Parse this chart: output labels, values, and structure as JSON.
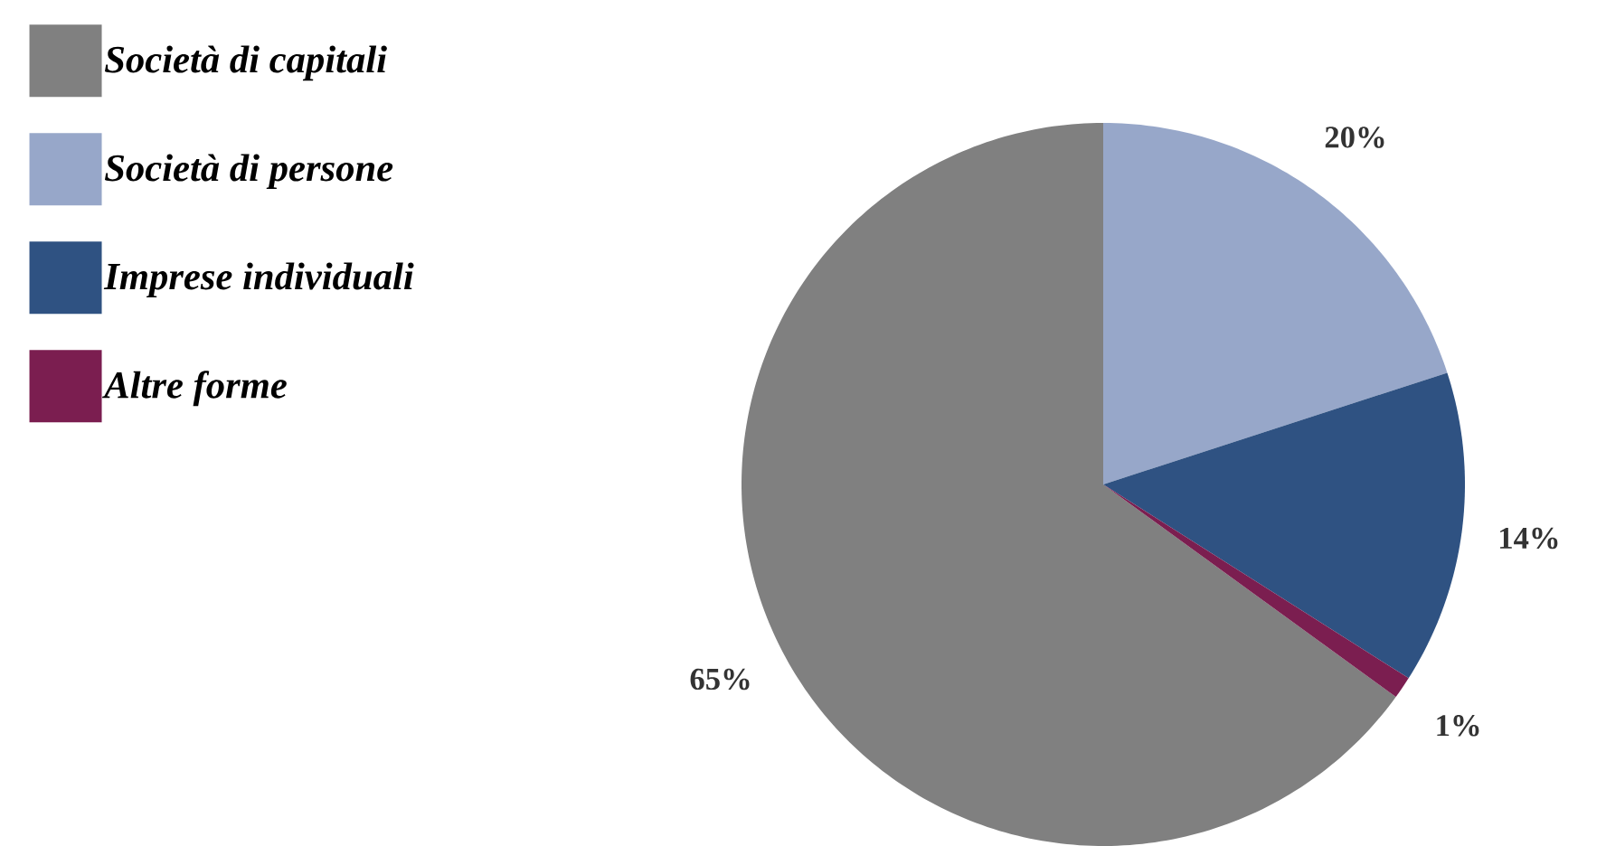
{
  "chart_data": {
    "type": "pie",
    "categories": [
      "Società di capitali",
      "Società di persone",
      "Imprese individuali",
      "Altre forme"
    ],
    "values": [
      65,
      20,
      14,
      1
    ],
    "colors": [
      "#808080",
      "#97a7c9",
      "#2f5282",
      "#7b1e50"
    ],
    "value_labels": [
      "65%",
      "20%",
      "14%",
      "1%"
    ],
    "legend": "left"
  }
}
